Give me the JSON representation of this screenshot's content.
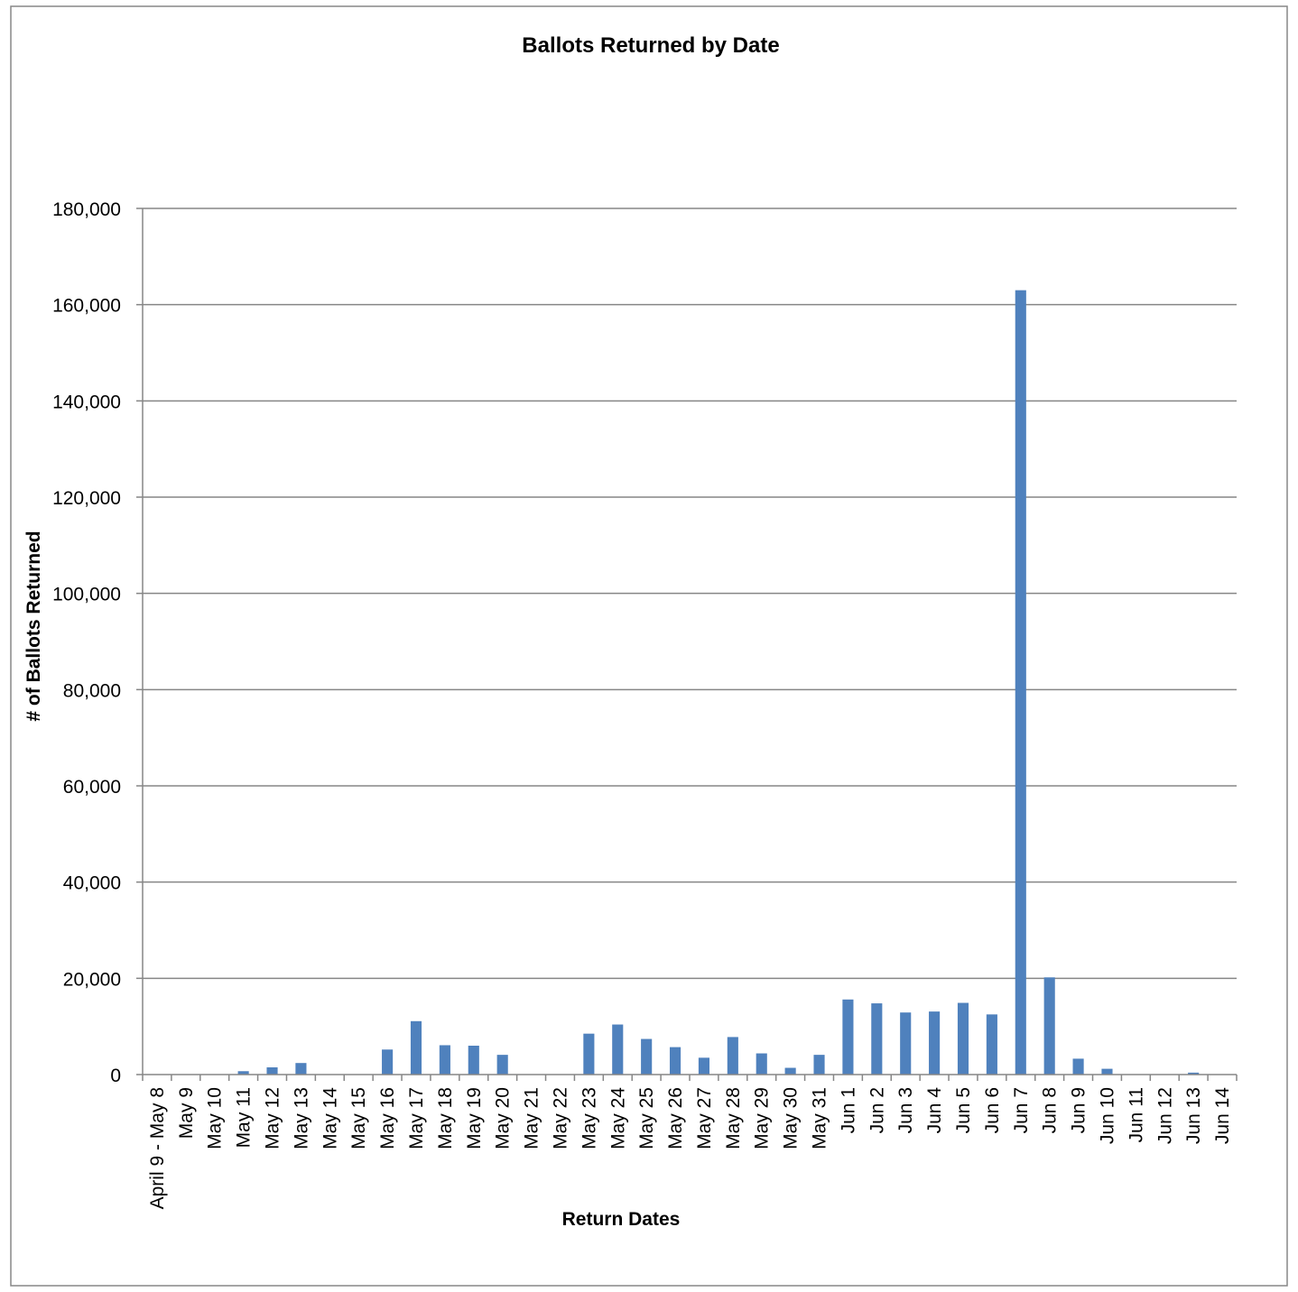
{
  "chart_data": {
    "type": "bar",
    "title": "Ballots Returned by Date",
    "xlabel": "Return Dates",
    "ylabel": "# of Ballots Returned",
    "ylim": [
      0,
      180000
    ],
    "yticks": [
      0,
      20000,
      40000,
      60000,
      80000,
      100000,
      120000,
      140000,
      160000,
      180000
    ],
    "ytick_labels": [
      "0",
      "20,000",
      "40,000",
      "60,000",
      "80,000",
      "100,000",
      "120,000",
      "140,000",
      "160,000",
      "180,000"
    ],
    "grid": true,
    "legend": "none",
    "bar_color": "#4F81BD",
    "categories": [
      "April 9 - May 8",
      "May 9",
      "May 10",
      "May 11",
      "May 12",
      "May 13",
      "May 14",
      "May 15",
      "May 16",
      "May 17",
      "May 18",
      "May 19",
      "May 20",
      "May 21",
      "May 22",
      "May 23",
      "May 24",
      "May 25",
      "May 26",
      "May 27",
      "May 28",
      "May 29",
      "May 30",
      "May 31",
      "Jun 1",
      "Jun 2",
      "Jun 3",
      "Jun 4",
      "Jun 5",
      "Jun 6",
      "Jun 7",
      "Jun 8",
      "Jun 9",
      "Jun 10",
      "Jun 11",
      "Jun 12",
      "Jun 13",
      "Jun 14"
    ],
    "values": [
      0,
      0,
      0,
      700,
      1500,
      2400,
      0,
      0,
      5200,
      11100,
      6100,
      6000,
      4100,
      0,
      0,
      8500,
      10400,
      7400,
      5700,
      3500,
      7800,
      4400,
      1400,
      4100,
      15600,
      14800,
      12900,
      13100,
      14900,
      12500,
      163000,
      20200,
      3300,
      1200,
      0,
      0,
      400,
      0
    ]
  }
}
